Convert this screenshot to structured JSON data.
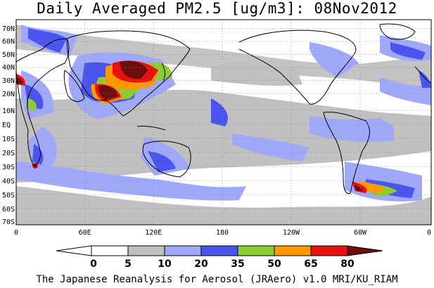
{
  "title": "Daily Averaged PM2.5 [ug/m3]: 08Nov2012",
  "footer": "The Japanese Reanalysis for Aerosol (JRAero) v1.0 MRI/KU_RIAM",
  "map": {
    "lat_labels": [
      "70N",
      "60N",
      "50N",
      "40N",
      "30N",
      "20N",
      "10N",
      "EQ",
      "10S",
      "20S",
      "30S",
      "40S",
      "50S",
      "60S",
      "70S"
    ],
    "lon_labels": [
      "0",
      "60E",
      "120E",
      "180",
      "120W",
      "60W",
      "0"
    ],
    "grid": "dotted"
  },
  "colorbar": {
    "labels": [
      "0",
      "5",
      "10",
      "20",
      "35",
      "50",
      "65",
      "80"
    ],
    "colors": [
      "#ffffff",
      "#ffffff",
      "#c0c0c0",
      "#a0a8f8",
      "#4a55ee",
      "#8ccd36",
      "#ff9900",
      "#e81010",
      "#6a0e0e"
    ]
  }
}
